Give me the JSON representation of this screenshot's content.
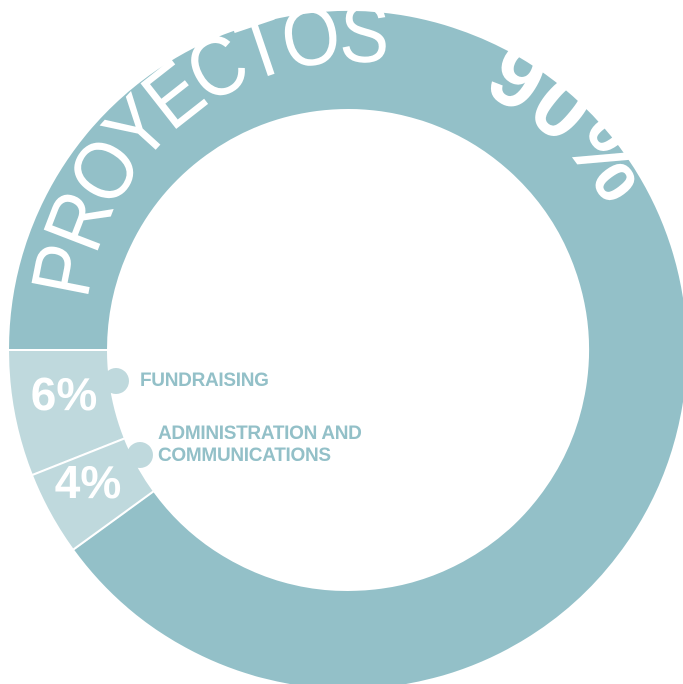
{
  "chart_data": {
    "type": "donut",
    "categories": [
      "PROYECTOS",
      "FUNDRAISING",
      "ADMINISTRATION AND COMMUNICATIONS"
    ],
    "values": [
      90,
      6,
      4
    ],
    "value_labels": [
      "90%",
      "6%",
      "4%"
    ],
    "colors": [
      "#93c0c8",
      "#bfd9dd",
      "#bfd9dd"
    ]
  }
}
